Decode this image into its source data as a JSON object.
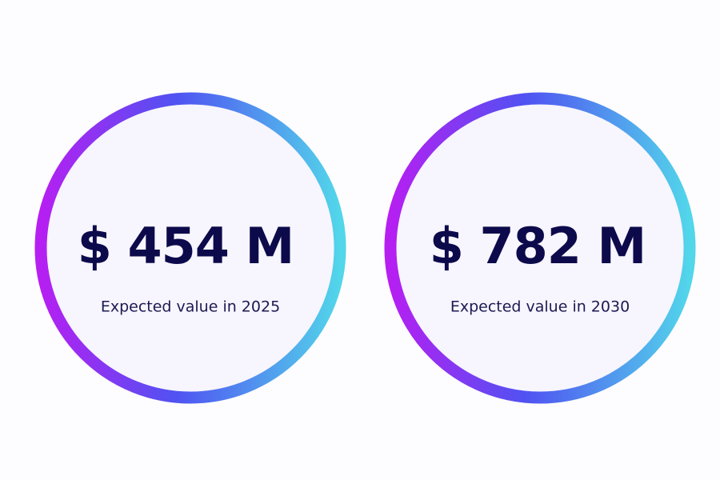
{
  "cards": [
    {
      "value": "$ 454 M",
      "caption": "Expected value in 2025"
    },
    {
      "value": "$ 782 M",
      "caption": "Expected value in 2030"
    }
  ]
}
